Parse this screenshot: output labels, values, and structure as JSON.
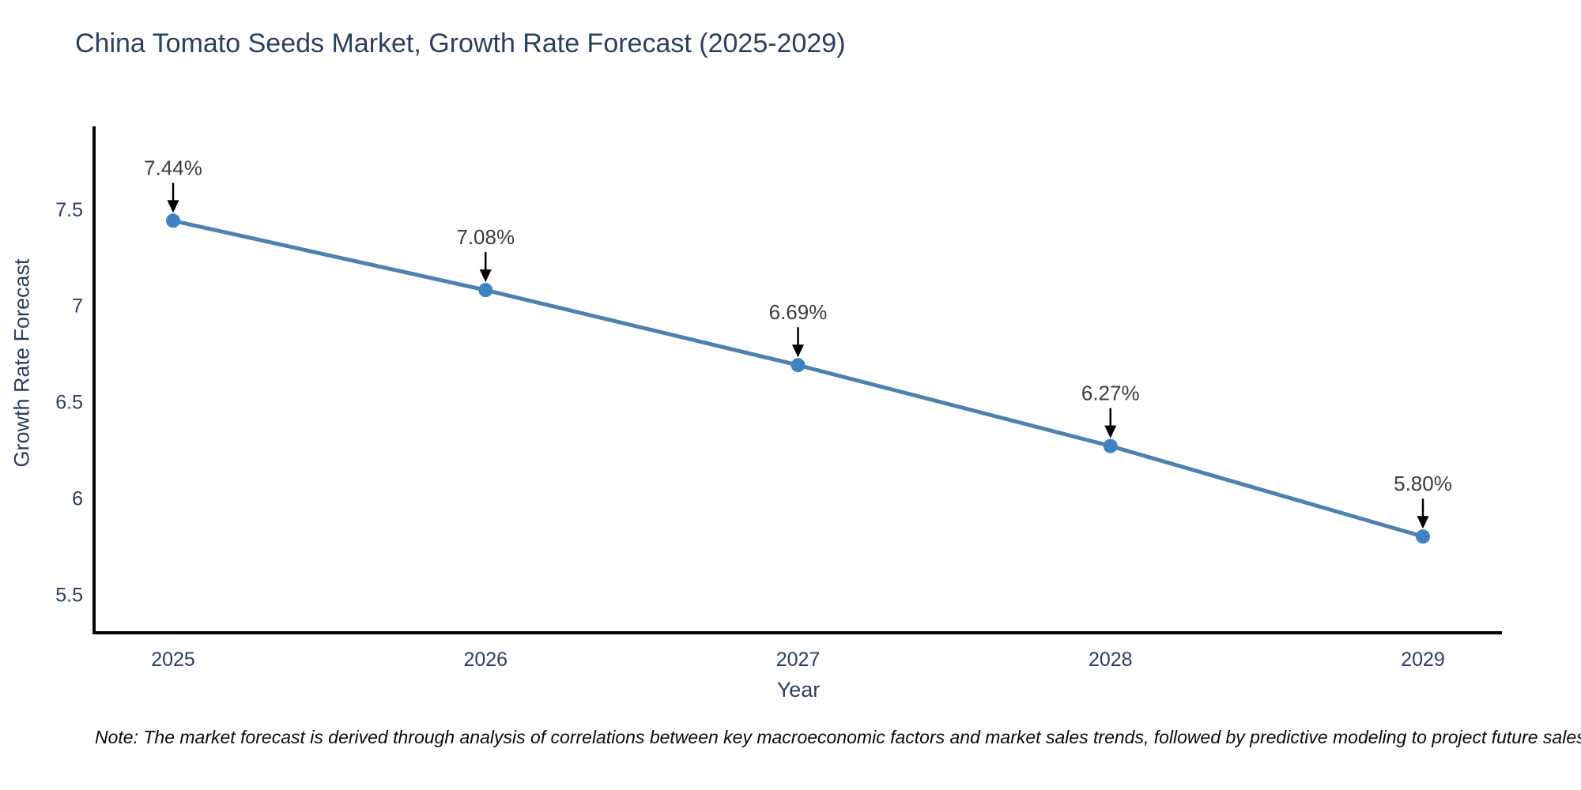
{
  "page": {
    "note": "Note: The market forecast is derived through analysis of correlations between key macroeconomic factors and market sales trends, followed by predictive modeling to project future sales"
  },
  "chart_data": {
    "type": "line",
    "title": "China Tomato Seeds Market, Growth Rate Forecast (2025-2029)",
    "xlabel": "Year",
    "ylabel": "Growth Rate Forecast",
    "categories": [
      "2025",
      "2026",
      "2027",
      "2028",
      "2029"
    ],
    "series": [
      {
        "name": "Growth Rate Forecast",
        "values": [
          7.44,
          7.08,
          6.69,
          6.27,
          5.8
        ]
      }
    ],
    "data_labels": [
      "7.44%",
      "7.08%",
      "6.69%",
      "6.27%",
      "5.80%"
    ],
    "ylim": [
      5.3,
      7.93
    ],
    "yticks": [
      7.5,
      7.0,
      6.5,
      6.0,
      5.5
    ],
    "ytick_labels": [
      "7.5",
      "7",
      "6.5",
      "6",
      "5.5"
    ],
    "grid": false,
    "legend": false,
    "colors": {
      "line": "#4d81ae",
      "marker": "#3e82c4",
      "annotation_text": "#3d3d3d",
      "arrow": "#000000",
      "axis": "#000000",
      "tick_text": "#2a3f5f"
    }
  }
}
